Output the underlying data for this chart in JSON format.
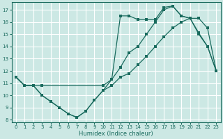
{
  "xlabel": "Humidex (Indice chaleur)",
  "bg_color": "#cce8e4",
  "line_color": "#1a6b5e",
  "grid_color": "#ffffff",
  "xlim": [
    -0.5,
    23.5
  ],
  "ylim": [
    7.8,
    17.6
  ],
  "xticks": [
    0,
    1,
    2,
    3,
    4,
    5,
    6,
    7,
    8,
    9,
    10,
    11,
    12,
    13,
    14,
    15,
    16,
    17,
    18,
    19,
    20,
    21,
    22,
    23
  ],
  "yticks": [
    8,
    9,
    10,
    11,
    12,
    13,
    14,
    15,
    16,
    17
  ],
  "series1_x": [
    0,
    1,
    2,
    3,
    4,
    5,
    6,
    7,
    8,
    9,
    10,
    11,
    12,
    13,
    14,
    15,
    16,
    17,
    18,
    19,
    20,
    21,
    22,
    23
  ],
  "series1_y": [
    11.5,
    10.8,
    10.8,
    10.0,
    9.5,
    9.0,
    8.5,
    8.2,
    8.7,
    9.6,
    10.4,
    11.3,
    16.5,
    16.5,
    16.2,
    16.2,
    16.2,
    17.2,
    17.3,
    16.5,
    16.3,
    15.1,
    14.0,
    12.0
  ],
  "series2_x": [
    0,
    1,
    2,
    3,
    10,
    11,
    12,
    13,
    14,
    15,
    16,
    17,
    18,
    19,
    20,
    21,
    22,
    23
  ],
  "series2_y": [
    11.5,
    10.8,
    10.8,
    10.8,
    10.8,
    11.3,
    12.3,
    13.5,
    14.0,
    15.0,
    16.0,
    17.0,
    17.3,
    16.5,
    16.3,
    15.0,
    14.0,
    12.0
  ],
  "series3_x": [
    0,
    1,
    2,
    3,
    4,
    5,
    6,
    7,
    8,
    9,
    10,
    11,
    12,
    13,
    14,
    15,
    16,
    17,
    18,
    19,
    20,
    21,
    22,
    23
  ],
  "series3_y": [
    11.5,
    10.8,
    10.8,
    10.0,
    9.5,
    9.0,
    8.5,
    8.2,
    8.7,
    9.6,
    10.4,
    10.8,
    11.5,
    11.8,
    12.5,
    13.2,
    14.0,
    14.8,
    15.5,
    16.0,
    16.3,
    16.3,
    15.5,
    12.0
  ]
}
